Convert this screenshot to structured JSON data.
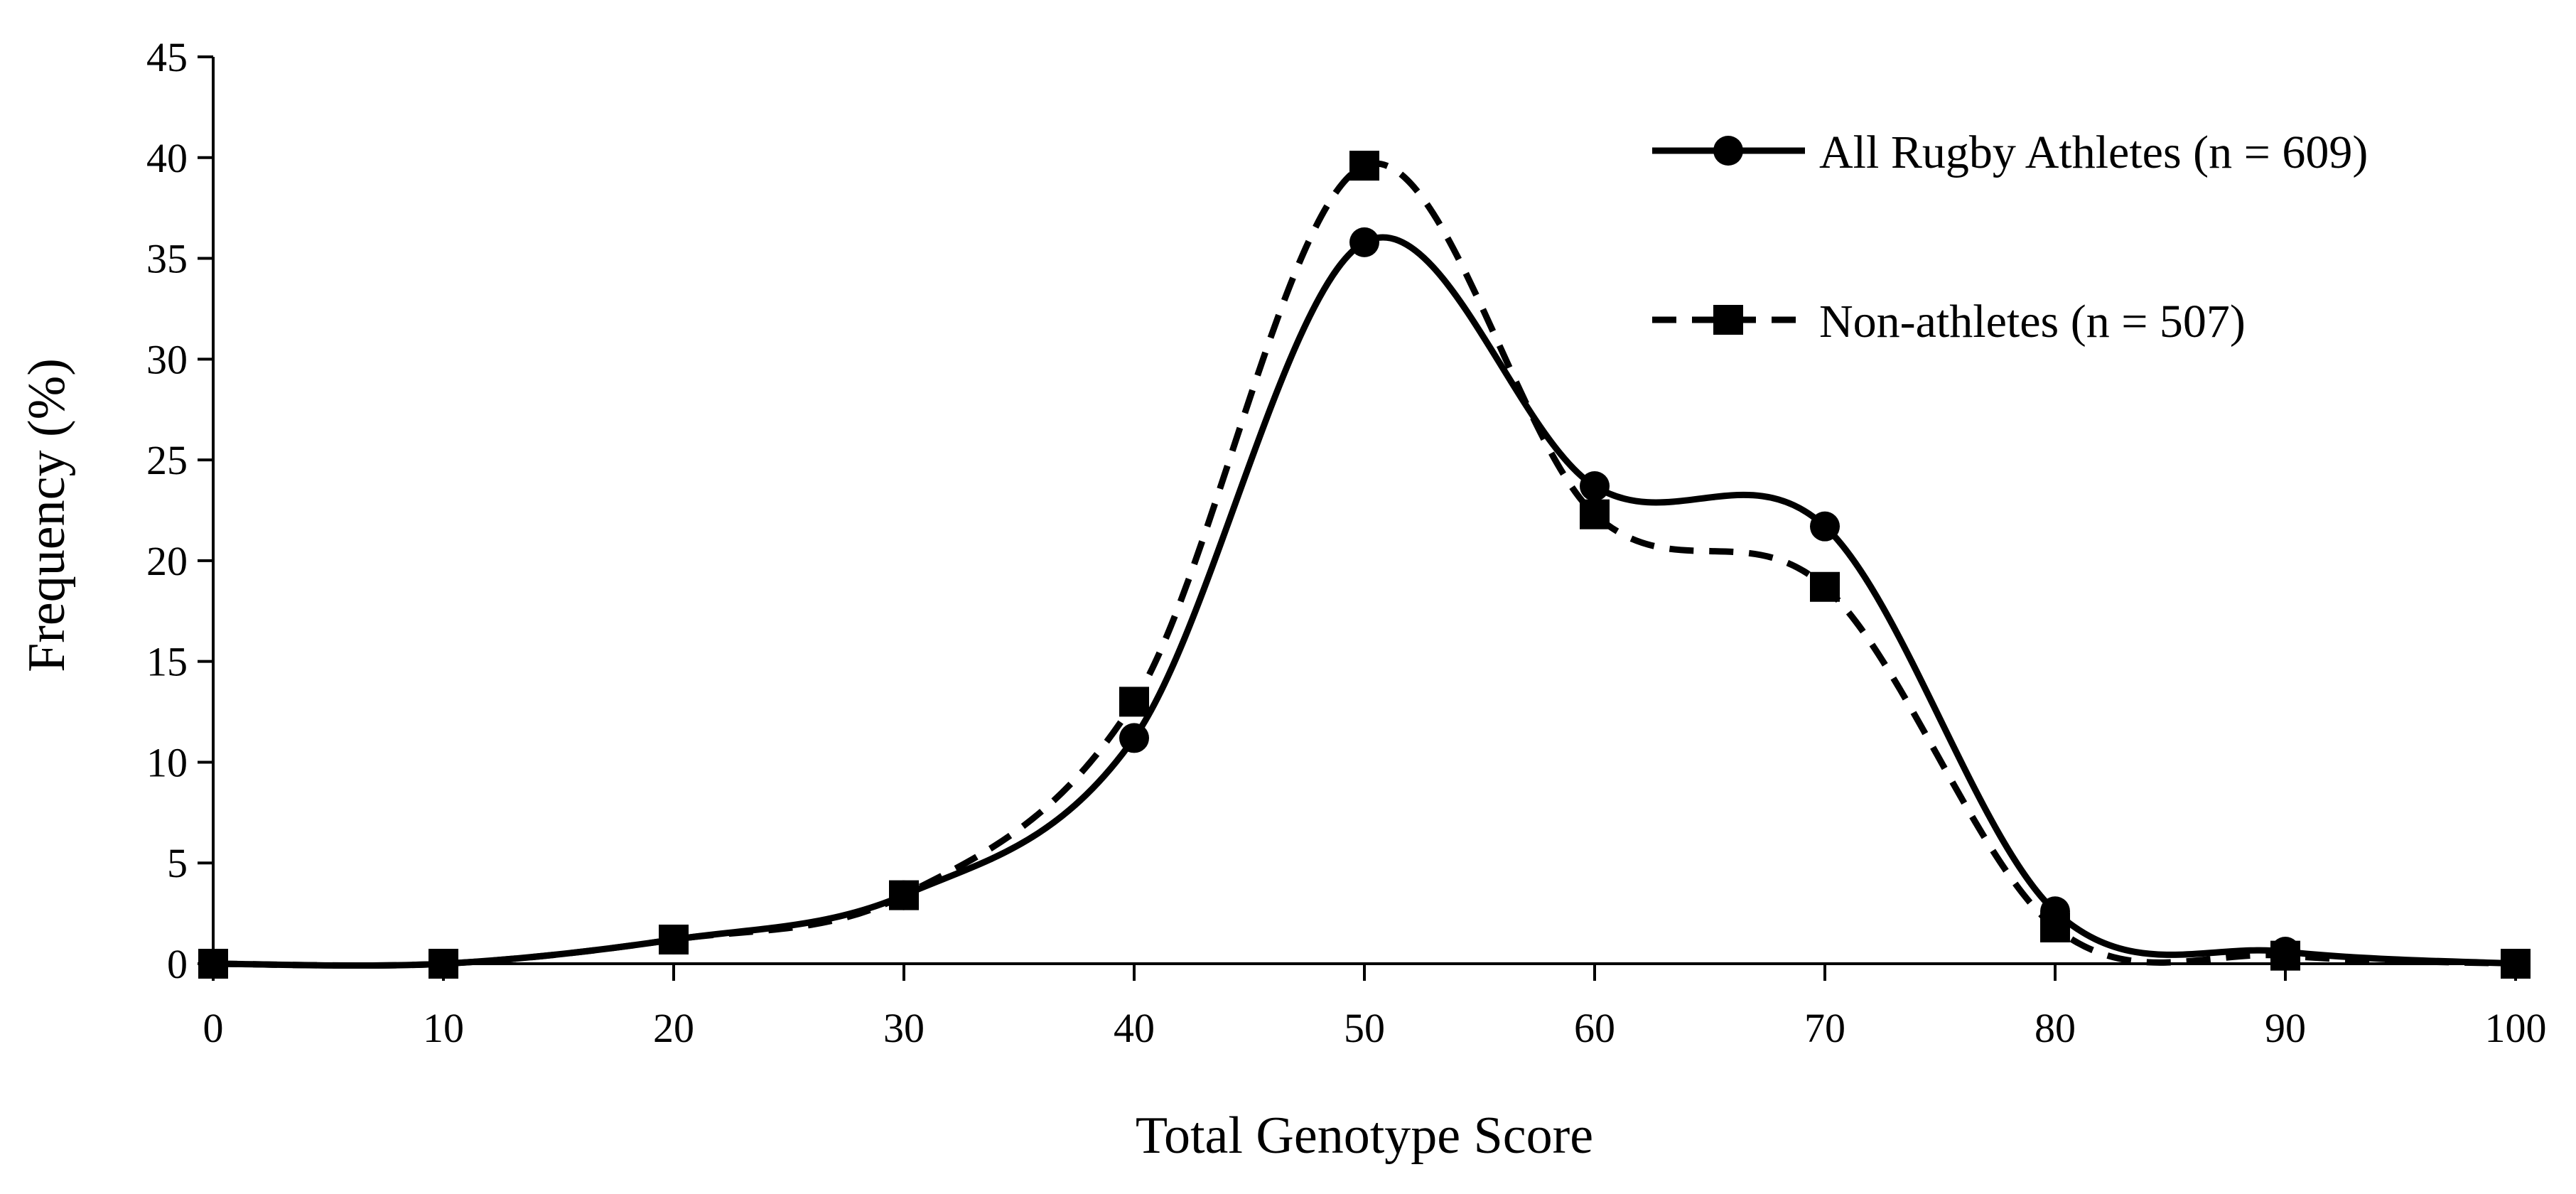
{
  "chart_data": {
    "type": "line",
    "title": "",
    "xlabel": "Total Genotype Score",
    "ylabel": "Frequency (%)",
    "xlim": [
      0,
      100
    ],
    "ylim": [
      0,
      45
    ],
    "xticks": [
      0,
      10,
      20,
      30,
      40,
      50,
      60,
      70,
      80,
      90,
      100
    ],
    "yticks": [
      0,
      5,
      10,
      15,
      20,
      25,
      30,
      35,
      40,
      45
    ],
    "grid": false,
    "legend_position": "top-right",
    "x": [
      0,
      10,
      20,
      30,
      40,
      50,
      60,
      70,
      80,
      90,
      100
    ],
    "series": [
      {
        "name": "All Rugby Athletes (n = 609)",
        "values": [
          0,
          0,
          1.2,
          3.4,
          11.2,
          35.8,
          23.7,
          21.7,
          2.6,
          0.6,
          0
        ],
        "marker": "circle",
        "dash": "solid",
        "color": "#000000"
      },
      {
        "name": "Non-athletes (n = 507)",
        "values": [
          0,
          0,
          1.2,
          3.4,
          13.0,
          39.6,
          22.3,
          18.7,
          1.8,
          0.4,
          0
        ],
        "marker": "square",
        "dash": "dashed",
        "color": "#000000"
      }
    ]
  }
}
